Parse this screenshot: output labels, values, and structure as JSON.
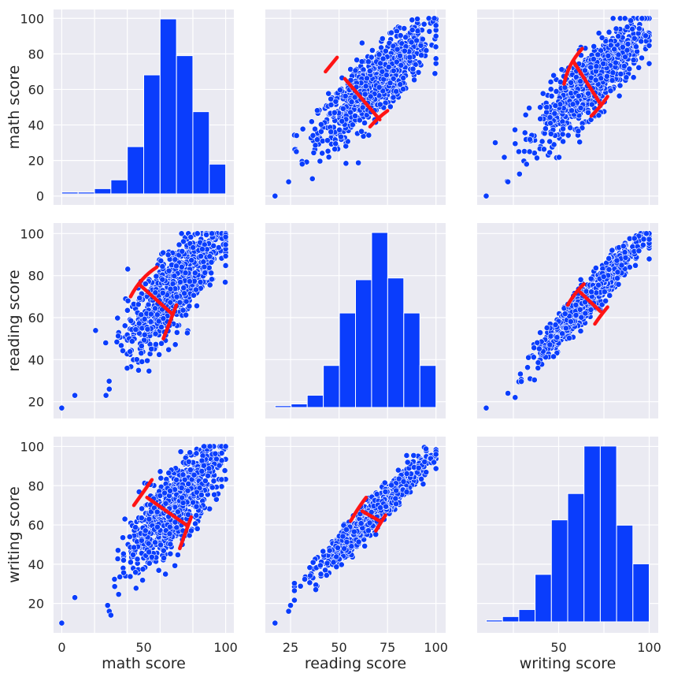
{
  "colors": {
    "panel_bg": "#eaeaf2",
    "grid": "#ffffff",
    "bar": "#0a3dfc",
    "point": "#0a3dfc",
    "point_edge": "#ffffff",
    "annotation": "#ff1414",
    "text": "#262626"
  },
  "chart_data": {
    "type": "pairplot",
    "variables": [
      "math score",
      "reading score",
      "writing score"
    ],
    "axis_ranges": {
      "math score": [
        -5,
        105
      ],
      "reading score": [
        12,
        105
      ],
      "writing score": [
        5,
        105
      ]
    },
    "x_ticks": {
      "math score": [
        "0",
        "50",
        "100"
      ],
      "reading score": [
        "25",
        "50",
        "75",
        "100"
      ],
      "writing score": [
        "50",
        "100"
      ]
    },
    "x_tick_values": {
      "math score": [
        0,
        50,
        100
      ],
      "reading score": [
        25,
        50,
        75,
        100
      ],
      "writing score": [
        50,
        100
      ]
    },
    "y_ticks": {
      "math score": [
        "0",
        "20",
        "40",
        "60",
        "80",
        "100"
      ],
      "reading score": [
        "20",
        "40",
        "60",
        "80",
        "100"
      ],
      "writing score": [
        "20",
        "40",
        "60",
        "80",
        "100"
      ]
    },
    "y_tick_values": {
      "math score": [
        0,
        20,
        40,
        60,
        80,
        100
      ],
      "reading score": [
        20,
        40,
        60,
        80,
        100
      ],
      "writing score": [
        20,
        40,
        60,
        80,
        100
      ]
    },
    "x_grid": {
      "math score": [
        0,
        20,
        40,
        60,
        80,
        100
      ],
      "reading score": [
        25,
        50,
        75,
        100
      ],
      "writing score": [
        25,
        50,
        75,
        100
      ]
    },
    "histograms": [
      {
        "variable": "math score",
        "bin_edges": [
          0,
          10,
          20,
          30,
          40,
          50,
          60,
          70,
          80,
          90,
          100
        ],
        "counts": [
          1,
          1,
          3,
          8,
          27,
          68,
          100,
          79,
          47,
          17
        ],
        "count_max": 100
      },
      {
        "variable": "reading score",
        "bin_edges": [
          17,
          25.3,
          33.6,
          41.9,
          50.2,
          58.5,
          66.8,
          75.1,
          83.4,
          91.7,
          100
        ],
        "counts": [
          1,
          2,
          7,
          24,
          54,
          73,
          100,
          74,
          54,
          24
        ],
        "count_max": 100
      },
      {
        "variable": "writing score",
        "bin_edges": [
          10,
          19,
          28,
          37,
          46,
          55,
          64,
          73,
          82,
          91,
          100
        ],
        "counts": [
          1,
          3,
          7,
          27,
          58,
          73,
          100,
          100,
          55,
          33
        ],
        "count_max": 100
      }
    ],
    "scatter": [
      {
        "x": "reading score",
        "y": "math score",
        "slope": 0.94,
        "intercept": -1.5,
        "noise": 9,
        "outliers": [
          [
            17,
            0
          ],
          [
            24,
            8
          ],
          [
            28,
            25
          ],
          [
            31,
            18
          ]
        ]
      },
      {
        "x": "writing score",
        "y": "math score",
        "slope": 0.92,
        "intercept": 2,
        "noise": 9,
        "outliers": [
          [
            10,
            0
          ],
          [
            22,
            8
          ],
          [
            28,
            25
          ],
          [
            15,
            30
          ]
        ]
      },
      {
        "x": "math score",
        "y": "reading score",
        "slope": 0.82,
        "intercept": 18,
        "noise": 9,
        "outliers": [
          [
            0,
            17
          ],
          [
            8,
            23
          ],
          [
            27,
            23
          ],
          [
            29,
            26
          ]
        ]
      },
      {
        "x": "writing score",
        "y": "reading score",
        "slope": 0.93,
        "intercept": 7,
        "noise": 4,
        "outliers": [
          [
            10,
            17
          ],
          [
            22,
            24
          ],
          [
            26,
            22
          ]
        ]
      },
      {
        "x": "math score",
        "y": "writing score",
        "slope": 0.85,
        "intercept": 11,
        "noise": 9,
        "outliers": [
          [
            0,
            10
          ],
          [
            8,
            23
          ],
          [
            28,
            19
          ],
          [
            29,
            16
          ],
          [
            30,
            14
          ]
        ]
      },
      {
        "x": "reading score",
        "y": "writing score",
        "slope": 0.98,
        "intercept": -1,
        "noise": 4,
        "outliers": [
          [
            17,
            10
          ],
          [
            24,
            16
          ],
          [
            25,
            19
          ],
          [
            38,
            27
          ]
        ]
      }
    ],
    "annotations": [
      {
        "x": "reading score",
        "y": "math score",
        "bar": [
          [
            53,
            66
          ],
          [
            71,
            43
          ]
        ],
        "cap_a": [
          [
            43,
            70
          ],
          [
            46,
            74
          ],
          [
            49,
            78
          ]
        ],
        "cap_b": [
          [
            66,
            39
          ],
          [
            70,
            44
          ],
          [
            75,
            48
          ]
        ]
      },
      {
        "x": "writing score",
        "y": "math score",
        "bar": [
          [
            58,
            76
          ],
          [
            73,
            52
          ]
        ],
        "cap_a": [
          [
            53,
            63
          ],
          [
            55,
            74
          ],
          [
            63,
            83
          ]
        ],
        "cap_b": [
          [
            68,
            45
          ],
          [
            73,
            50
          ],
          [
            77,
            56
          ]
        ]
      },
      {
        "x": "math score",
        "y": "reading score",
        "bar": [
          [
            47,
            76
          ],
          [
            67,
            62
          ]
        ],
        "cap_a": [
          [
            42,
            70
          ],
          [
            48,
            79
          ],
          [
            58,
            84
          ]
        ],
        "cap_b": [
          [
            62,
            50
          ],
          [
            66,
            58
          ],
          [
            70,
            66
          ]
        ]
      },
      {
        "x": "writing score",
        "y": "reading score",
        "bar": [
          [
            62,
            72
          ],
          [
            73,
            63
          ]
        ],
        "cap_a": [
          [
            55,
            66
          ],
          [
            59,
            72
          ],
          [
            64,
            76
          ]
        ],
        "cap_b": [
          [
            70,
            57
          ],
          [
            74,
            62
          ],
          [
            77,
            65
          ]
        ]
      },
      {
        "x": "math score",
        "y": "writing score",
        "bar": [
          [
            52,
            74
          ],
          [
            76,
            60
          ]
        ],
        "cap_a": [
          [
            44,
            70
          ],
          [
            50,
            77
          ],
          [
            55,
            83
          ]
        ],
        "cap_b": [
          [
            72,
            48
          ],
          [
            75,
            55
          ],
          [
            79,
            64
          ]
        ]
      },
      {
        "x": "reading score",
        "y": "writing score",
        "bar": [
          [
            62,
            67
          ],
          [
            71,
            62
          ]
        ],
        "cap_a": [
          [
            56,
            62
          ],
          [
            60,
            69
          ],
          [
            64,
            74
          ]
        ],
        "cap_b": [
          [
            69,
            57
          ],
          [
            72,
            62
          ],
          [
            74,
            65
          ]
        ]
      }
    ]
  }
}
